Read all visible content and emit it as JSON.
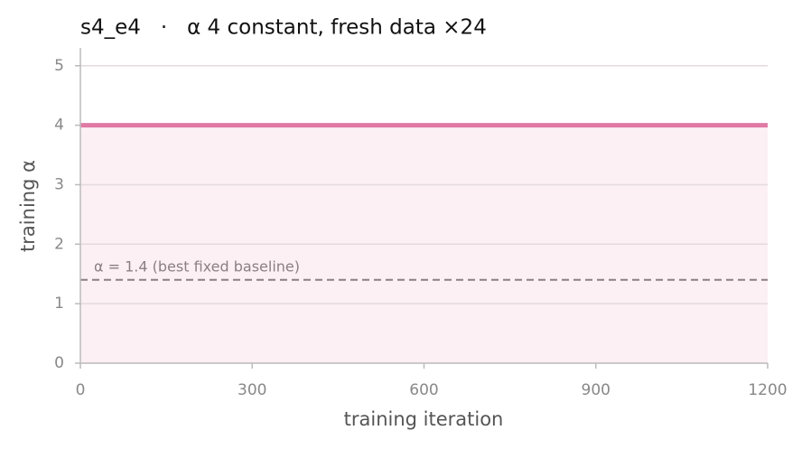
{
  "chart_data": {
    "type": "line",
    "title": "s4_e4   ·   α 4 constant, fresh data ×24",
    "x_label": "training iteration",
    "y_label": "training α",
    "x": [
      0,
      1200
    ],
    "series": [
      {
        "name": "training α",
        "color": "#e07aa5",
        "values": [
          4,
          4
        ]
      }
    ],
    "fill_below": "#fcf0f4",
    "reference": {
      "value": 1.4,
      "label": "α = 1.4 (best fixed baseline)"
    },
    "xlim": [
      0,
      1200
    ],
    "xticks": [
      0,
      300,
      600,
      900,
      1200
    ],
    "ylim": [
      0,
      5.3
    ],
    "yticks": [
      0,
      1,
      2,
      3,
      4,
      5
    ],
    "grid": true
  }
}
